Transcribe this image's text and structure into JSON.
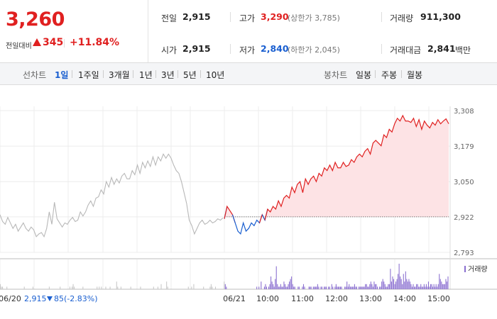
{
  "quote": {
    "price": "3,260",
    "change_label": "전일대비",
    "change_value": "345",
    "change_rate": "+11.84%",
    "colors": {
      "up": "#e02020",
      "down": "#1a5fd0"
    }
  },
  "stats": {
    "prev_close_label": "전일",
    "prev_close": "2,915",
    "open_label": "시가",
    "open": "2,915",
    "high_label": "고가",
    "high": "3,290",
    "upper_limit": "(상한가 3,785)",
    "low_label": "저가",
    "low": "2,840",
    "lower_limit": "(하한가 2,045)",
    "volume_label": "거래량",
    "volume": "911,300",
    "amount_label": "거래대금",
    "amount": "2,841",
    "amount_unit": "백만"
  },
  "toolbar": {
    "line_label": "선차트",
    "periods": [
      "1일",
      "1주일",
      "3개월",
      "1년",
      "3년",
      "5년",
      "10년"
    ],
    "active_period": "1일",
    "candle_label": "봉차트",
    "candles": [
      "일봉",
      "주봉",
      "월봉"
    ]
  },
  "chart_data": {
    "type": "line",
    "y_ticks": [
      "3,308",
      "3,179",
      "3,050",
      "2,922",
      "2,793"
    ],
    "ylim": [
      2793,
      3308
    ],
    "reference_price": 2922,
    "x_labels": [
      "06/20",
      "06/21",
      "10:00",
      "11:00",
      "12:00",
      "13:00",
      "14:00",
      "15:00"
    ],
    "prev_day_summary": {
      "close": "2,915",
      "change": "85",
      "rate": "(-2.83%)"
    },
    "volume_legend": "거래량",
    "series": [
      {
        "day": "06/20",
        "values": [
          2930,
          2905,
          2895,
          2920,
          2900,
          2880,
          2895,
          2870,
          2885,
          2900,
          2880,
          2870,
          2885,
          2875,
          2850,
          2860,
          2865,
          2850,
          2880,
          2940,
          2895,
          2975,
          2915,
          2900,
          2885,
          2900,
          2895,
          2910,
          2920,
          2905,
          2910,
          2940,
          2925,
          2940,
          2965,
          2980,
          2960,
          2990,
          2995,
          3020,
          3005,
          3050,
          3030,
          3065,
          3040,
          3060,
          3045,
          3070,
          3080,
          3060,
          3060,
          3090,
          3075,
          3110,
          3080,
          3120,
          3100,
          3125,
          3105,
          3140,
          3110,
          3140,
          3125,
          3150,
          3135,
          3150,
          3135,
          3110,
          3090,
          3080,
          3050,
          3010,
          2970,
          2910,
          2890,
          2860,
          2880,
          2900,
          2910,
          2895,
          2900,
          2910,
          2900,
          2905,
          2915,
          2910,
          2918
        ]
      },
      {
        "day": "06/21",
        "values": [
          2915,
          2960,
          2945,
          2930,
          2900,
          2870,
          2860,
          2900,
          2870,
          2880,
          2900,
          2890,
          2910,
          2900,
          2930,
          2910,
          2950,
          2940,
          2960,
          2950,
          2980,
          2960,
          2990,
          3000,
          2990,
          3030,
          3010,
          3040,
          3050,
          3010,
          3060,
          3040,
          3060,
          3070,
          3050,
          3080,
          3070,
          3100,
          3090,
          3110,
          3090,
          3120,
          3100,
          3100,
          3120,
          3105,
          3110,
          3130,
          3120,
          3140,
          3150,
          3140,
          3160,
          3170,
          3150,
          3190,
          3200,
          3190,
          3180,
          3220,
          3210,
          3240,
          3230,
          3260,
          3280,
          3270,
          3290,
          3270,
          3270,
          3265,
          3280,
          3250,
          3275,
          3240,
          3270,
          3255,
          3245,
          3265,
          3255,
          3275,
          3260,
          3270,
          3278,
          3260
        ]
      }
    ],
    "volume": [
      2,
      1,
      1,
      0,
      0,
      0,
      1,
      0,
      0,
      0,
      0,
      0,
      0,
      0,
      0,
      0,
      0,
      0,
      0,
      0,
      0,
      0,
      1,
      0,
      0,
      0,
      0,
      0,
      0,
      0,
      1,
      0,
      0,
      0,
      0,
      0,
      0,
      0,
      0,
      0,
      0,
      0,
      0,
      0,
      0,
      1,
      0,
      0,
      0,
      0,
      0,
      0,
      0,
      0,
      0,
      1,
      0,
      0,
      0,
      0,
      0,
      0,
      0,
      0,
      1,
      0,
      1,
      2,
      1,
      0,
      0,
      0,
      0,
      0,
      0,
      0,
      1,
      0,
      0,
      0,
      0,
      0,
      0,
      0,
      0,
      0,
      0,
      0,
      0,
      1,
      0,
      1,
      0,
      1,
      0,
      0,
      0,
      1,
      0,
      0,
      0,
      1,
      0,
      0,
      0,
      0,
      0,
      3,
      1,
      0,
      0,
      1,
      0,
      0,
      0,
      0,
      0,
      0,
      0,
      0,
      1,
      0,
      0,
      0,
      0,
      0,
      0,
      0,
      0,
      1,
      0,
      0,
      0,
      0,
      0,
      0,
      0,
      0,
      0,
      0,
      0,
      1,
      0,
      0,
      0,
      1,
      0,
      0,
      2,
      0,
      0,
      0,
      0,
      3,
      1,
      0,
      0,
      0,
      0,
      0,
      0,
      0,
      0,
      0,
      0,
      0,
      0,
      0,
      0,
      0,
      0,
      0,
      0,
      1,
      0,
      0,
      1,
      0,
      2,
      0,
      0,
      0,
      0,
      0,
      0,
      0,
      0,
      1,
      0,
      0,
      0,
      0,
      0,
      1,
      2,
      1,
      0,
      0,
      1,
      0,
      0,
      0,
      0,
      0,
      0,
      0,
      3,
      2,
      1,
      0,
      0,
      0,
      0,
      0,
      0,
      0,
      0,
      0,
      0,
      0,
      0,
      0,
      0,
      0,
      0,
      0,
      0,
      0,
      0,
      0,
      0,
      0,
      0,
      0,
      0,
      0,
      1,
      0,
      1,
      0,
      3,
      0,
      0,
      1,
      2,
      1,
      0,
      1,
      2,
      5,
      3,
      2,
      1,
      4,
      9,
      2,
      1,
      1,
      2,
      1,
      1,
      3,
      2,
      1,
      1,
      2,
      3,
      4,
      5,
      2,
      1,
      1,
      0,
      0,
      1,
      1,
      0,
      0,
      1,
      2,
      1,
      0,
      0,
      0,
      1,
      1,
      1,
      0,
      1,
      1,
      1,
      1,
      2,
      1,
      0,
      1,
      1,
      0,
      1,
      1,
      1,
      0,
      1,
      1,
      0,
      2,
      1,
      0,
      1,
      2,
      1,
      1,
      1,
      1,
      1,
      0,
      0,
      1,
      1,
      3,
      1,
      2,
      1,
      1,
      1,
      1,
      2,
      1,
      1,
      0,
      1,
      1,
      1,
      1,
      1,
      1,
      2,
      2,
      1,
      1,
      2,
      3,
      2,
      1,
      3,
      2,
      2,
      1,
      0,
      1,
      1,
      3,
      4,
      3,
      2,
      1,
      1,
      2,
      2,
      8,
      3,
      5,
      4,
      2,
      3,
      4,
      6,
      10,
      5,
      4,
      2,
      6,
      3,
      7,
      4,
      3,
      4,
      3,
      2,
      1,
      2,
      1,
      1,
      2,
      2,
      1,
      1,
      2,
      1,
      1,
      2,
      1,
      2,
      1,
      3,
      1,
      2,
      2,
      1,
      2,
      1,
      2,
      1,
      2,
      6,
      4,
      3,
      2,
      2,
      2,
      4,
      3,
      5
    ]
  }
}
